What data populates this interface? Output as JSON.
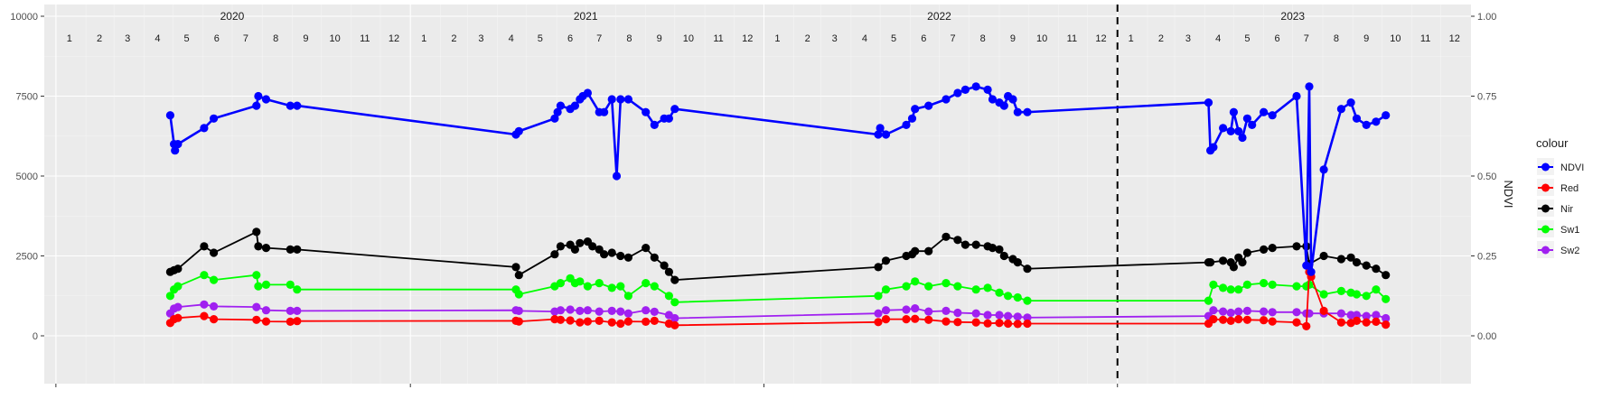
{
  "chart_data": {
    "type": "line",
    "title": "",
    "xlabel": "",
    "ylabel_left": "",
    "ylabel_right": "NDVI",
    "y_left_ticks": [
      "0",
      "2500",
      "5000",
      "7500",
      "10000"
    ],
    "y_left_values": [
      0,
      2500,
      5000,
      7500,
      10000
    ],
    "y_right_ticks": [
      "0.00",
      "0.25",
      "0.50",
      "0.75",
      "1.00"
    ],
    "ylim_left": [
      0,
      10000
    ],
    "ylim_right": [
      0,
      1
    ],
    "x_start": "2019-12-20",
    "x_end": "2024-01-01",
    "year_labels": [
      "2020",
      "2021",
      "2022",
      "2023"
    ],
    "month_labels": [
      "1",
      "2",
      "3",
      "4",
      "5",
      "6",
      "7",
      "8",
      "9",
      "10",
      "11",
      "12"
    ],
    "vline_date": "2023-01-01",
    "grid": true,
    "legend_position": "right",
    "legend_title": "colour",
    "series": [
      {
        "name": "NDVI",
        "axis": "right",
        "color": "#0000ff",
        "x": [
          "2020-04-28",
          "2020-05-02",
          "2020-05-03",
          "2020-05-06",
          "2020-06-02",
          "2020-06-12",
          "2020-07-26",
          "2020-07-28",
          "2020-08-05",
          "2020-08-30",
          "2020-09-06",
          "2021-04-20",
          "2021-04-23",
          "2021-05-30",
          "2021-06-02",
          "2021-06-05",
          "2021-06-15",
          "2021-06-20",
          "2021-06-25",
          "2021-06-28",
          "2021-07-03",
          "2021-07-15",
          "2021-07-20",
          "2021-07-28",
          "2021-08-02",
          "2021-08-06",
          "2021-08-14",
          "2021-09-01",
          "2021-09-10",
          "2021-09-20",
          "2021-09-25",
          "2021-10-01",
          "2022-04-29",
          "2022-05-01",
          "2022-05-07",
          "2022-05-28",
          "2022-06-03",
          "2022-06-06",
          "2022-06-20",
          "2022-07-08",
          "2022-07-20",
          "2022-07-28",
          "2022-08-08",
          "2022-08-20",
          "2022-08-25",
          "2022-09-01",
          "2022-09-06",
          "2022-09-10",
          "2022-09-15",
          "2022-09-20",
          "2022-09-30",
          "2023-04-05",
          "2023-04-07",
          "2023-04-10",
          "2023-04-20",
          "2023-04-28",
          "2023-05-01",
          "2023-05-06",
          "2023-05-10",
          "2023-05-15",
          "2023-05-20",
          "2023-06-01",
          "2023-06-10",
          "2023-07-05",
          "2023-07-15",
          "2023-07-18",
          "2023-07-20",
          "2023-08-02",
          "2023-08-20",
          "2023-08-30",
          "2023-09-05",
          "2023-09-15",
          "2023-09-25",
          "2023-10-05"
        ],
        "values": [
          0.69,
          0.6,
          0.58,
          0.6,
          0.65,
          0.68,
          0.72,
          0.75,
          0.74,
          0.72,
          0.72,
          0.63,
          0.64,
          0.68,
          0.7,
          0.72,
          0.71,
          0.72,
          0.74,
          0.75,
          0.76,
          0.7,
          0.7,
          0.74,
          0.5,
          0.74,
          0.74,
          0.7,
          0.66,
          0.68,
          0.68,
          0.71,
          0.63,
          0.65,
          0.63,
          0.66,
          0.68,
          0.71,
          0.72,
          0.74,
          0.76,
          0.77,
          0.78,
          0.77,
          0.74,
          0.73,
          0.72,
          0.75,
          0.74,
          0.7,
          0.7,
          0.73,
          0.58,
          0.59,
          0.65,
          0.64,
          0.7,
          0.64,
          0.62,
          0.68,
          0.66,
          0.7,
          0.69,
          0.75,
          0.22,
          0.78,
          0.2,
          0.52,
          0.71,
          0.73,
          0.68,
          0.66,
          0.67,
          0.69
        ]
      },
      {
        "name": "Red",
        "axis": "left",
        "color": "#ff0000",
        "x": [
          "2020-04-28",
          "2020-05-02",
          "2020-05-06",
          "2020-06-02",
          "2020-06-12",
          "2020-07-26",
          "2020-08-05",
          "2020-08-30",
          "2020-09-06",
          "2021-04-20",
          "2021-04-23",
          "2021-05-30",
          "2021-06-05",
          "2021-06-15",
          "2021-06-25",
          "2021-07-03",
          "2021-07-15",
          "2021-07-28",
          "2021-08-06",
          "2021-08-14",
          "2021-09-01",
          "2021-09-10",
          "2021-09-25",
          "2021-10-01",
          "2022-04-29",
          "2022-05-07",
          "2022-05-28",
          "2022-06-06",
          "2022-06-20",
          "2022-07-08",
          "2022-07-20",
          "2022-08-08",
          "2022-08-20",
          "2022-09-01",
          "2022-09-10",
          "2022-09-20",
          "2022-09-30",
          "2023-04-05",
          "2023-04-10",
          "2023-04-20",
          "2023-04-28",
          "2023-05-06",
          "2023-05-15",
          "2023-06-01",
          "2023-06-10",
          "2023-07-05",
          "2023-07-15",
          "2023-07-18",
          "2023-07-20",
          "2023-08-02",
          "2023-08-20",
          "2023-08-30",
          "2023-09-05",
          "2023-09-15",
          "2023-09-25",
          "2023-10-05"
        ],
        "values": [
          400,
          520,
          560,
          620,
          520,
          500,
          450,
          440,
          460,
          470,
          450,
          520,
          500,
          480,
          420,
          450,
          470,
          420,
          380,
          450,
          440,
          470,
          380,
          330,
          430,
          520,
          520,
          530,
          500,
          450,
          430,
          420,
          390,
          400,
          380,
          370,
          380,
          380,
          520,
          500,
          470,
          520,
          500,
          490,
          450,
          420,
          300,
          2000,
          1850,
          780,
          420,
          400,
          470,
          420,
          440,
          350
        ]
      },
      {
        "name": "Nir",
        "axis": "left",
        "color": "#000000",
        "x": [
          "2020-04-28",
          "2020-05-02",
          "2020-05-06",
          "2020-06-02",
          "2020-06-12",
          "2020-07-26",
          "2020-07-28",
          "2020-08-05",
          "2020-08-30",
          "2020-09-06",
          "2021-04-20",
          "2021-04-23",
          "2021-05-30",
          "2021-06-05",
          "2021-06-15",
          "2021-06-20",
          "2021-06-25",
          "2021-07-03",
          "2021-07-08",
          "2021-07-15",
          "2021-07-20",
          "2021-07-28",
          "2021-08-06",
          "2021-08-14",
          "2021-09-01",
          "2021-09-10",
          "2021-09-20",
          "2021-09-25",
          "2021-10-01",
          "2022-04-29",
          "2022-05-07",
          "2022-05-28",
          "2022-06-03",
          "2022-06-06",
          "2022-06-20",
          "2022-07-08",
          "2022-07-20",
          "2022-07-28",
          "2022-08-08",
          "2022-08-20",
          "2022-08-25",
          "2022-09-01",
          "2022-09-06",
          "2022-09-15",
          "2022-09-20",
          "2022-09-30",
          "2023-04-05",
          "2023-04-07",
          "2023-04-20",
          "2023-04-28",
          "2023-05-01",
          "2023-05-06",
          "2023-05-10",
          "2023-05-15",
          "2023-06-01",
          "2023-06-10",
          "2023-07-05",
          "2023-07-15",
          "2023-07-18",
          "2023-08-02",
          "2023-08-20",
          "2023-08-30",
          "2023-09-05",
          "2023-09-15",
          "2023-09-25",
          "2023-10-05"
        ],
        "values": [
          2000,
          2050,
          2100,
          2800,
          2600,
          3250,
          2800,
          2750,
          2700,
          2700,
          2150,
          1900,
          2550,
          2800,
          2850,
          2700,
          2900,
          2950,
          2800,
          2700,
          2550,
          2600,
          2500,
          2450,
          2750,
          2450,
          2200,
          2000,
          1750,
          2150,
          2350,
          2500,
          2550,
          2650,
          2650,
          3100,
          3000,
          2850,
          2850,
          2800,
          2750,
          2700,
          2500,
          2400,
          2300,
          2100,
          2300,
          2300,
          2350,
          2300,
          2150,
          2450,
          2300,
          2600,
          2700,
          2750,
          2800,
          2800,
          2250,
          2500,
          2400,
          2450,
          2300,
          2200,
          2100,
          1900
        ]
      },
      {
        "name": "Sw1",
        "axis": "left",
        "color": "#00ff00",
        "x": [
          "2020-04-28",
          "2020-05-02",
          "2020-05-06",
          "2020-06-02",
          "2020-06-12",
          "2020-07-26",
          "2020-07-28",
          "2020-08-05",
          "2020-08-30",
          "2020-09-06",
          "2021-04-20",
          "2021-04-23",
          "2021-05-30",
          "2021-06-05",
          "2021-06-15",
          "2021-06-20",
          "2021-06-25",
          "2021-07-03",
          "2021-07-15",
          "2021-07-28",
          "2021-08-06",
          "2021-08-14",
          "2021-09-01",
          "2021-09-10",
          "2021-09-25",
          "2021-10-01",
          "2022-04-29",
          "2022-05-07",
          "2022-05-28",
          "2022-06-06",
          "2022-06-20",
          "2022-07-08",
          "2022-07-20",
          "2022-08-08",
          "2022-08-20",
          "2022-09-01",
          "2022-09-10",
          "2022-09-20",
          "2022-09-30",
          "2023-04-05",
          "2023-04-10",
          "2023-04-20",
          "2023-04-28",
          "2023-05-06",
          "2023-05-15",
          "2023-06-01",
          "2023-06-10",
          "2023-07-05",
          "2023-07-15",
          "2023-07-18",
          "2023-08-02",
          "2023-08-20",
          "2023-08-30",
          "2023-09-05",
          "2023-09-15",
          "2023-09-25",
          "2023-10-05"
        ],
        "values": [
          1250,
          1450,
          1550,
          1900,
          1750,
          1900,
          1550,
          1600,
          1600,
          1450,
          1450,
          1300,
          1550,
          1650,
          1800,
          1650,
          1700,
          1550,
          1650,
          1500,
          1550,
          1250,
          1650,
          1550,
          1250,
          1050,
          1250,
          1450,
          1550,
          1700,
          1550,
          1650,
          1550,
          1450,
          1500,
          1350,
          1250,
          1200,
          1100,
          1100,
          1600,
          1500,
          1450,
          1450,
          1600,
          1650,
          1600,
          1550,
          1550,
          1600,
          1300,
          1400,
          1350,
          1300,
          1250,
          1450,
          1150
        ]
      },
      {
        "name": "Sw2",
        "axis": "left",
        "color": "#a020f0",
        "x": [
          "2020-04-28",
          "2020-05-02",
          "2020-05-06",
          "2020-06-02",
          "2020-06-12",
          "2020-07-26",
          "2020-08-05",
          "2020-08-30",
          "2020-09-06",
          "2021-04-20",
          "2021-04-23",
          "2021-05-30",
          "2021-06-05",
          "2021-06-15",
          "2021-06-25",
          "2021-07-03",
          "2021-07-15",
          "2021-07-28",
          "2021-08-06",
          "2021-08-14",
          "2021-09-01",
          "2021-09-10",
          "2021-09-25",
          "2021-10-01",
          "2022-04-29",
          "2022-05-07",
          "2022-05-28",
          "2022-06-06",
          "2022-06-20",
          "2022-07-08",
          "2022-07-20",
          "2022-08-08",
          "2022-08-20",
          "2022-09-01",
          "2022-09-10",
          "2022-09-20",
          "2022-09-30",
          "2023-04-05",
          "2023-04-10",
          "2023-04-20",
          "2023-04-28",
          "2023-05-06",
          "2023-05-15",
          "2023-06-01",
          "2023-06-10",
          "2023-07-05",
          "2023-07-15",
          "2023-07-18",
          "2023-08-02",
          "2023-08-20",
          "2023-08-30",
          "2023-09-05",
          "2023-09-15",
          "2023-09-25",
          "2023-10-05"
        ],
        "values": [
          700,
          850,
          900,
          980,
          920,
          900,
          800,
          780,
          780,
          800,
          780,
          760,
          800,
          820,
          780,
          800,
          760,
          780,
          760,
          700,
          800,
          750,
          650,
          550,
          700,
          800,
          820,
          860,
          760,
          780,
          720,
          700,
          650,
          650,
          620,
          600,
          570,
          620,
          800,
          760,
          720,
          760,
          780,
          760,
          740,
          740,
          700,
          700,
          700,
          700,
          650,
          650,
          620,
          650,
          550
        ]
      }
    ]
  }
}
